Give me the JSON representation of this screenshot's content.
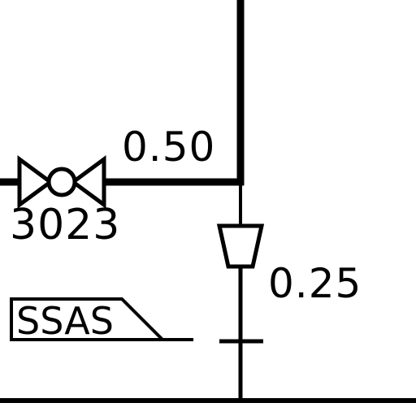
{
  "diagram": {
    "pipe_size_horizontal": "0.50",
    "pipe_size_vertical": "0.25",
    "valve_tag": "3023",
    "connection_flag_label": "SSAS",
    "colors": {
      "line": "#000000",
      "background": "#ffffff"
    }
  }
}
